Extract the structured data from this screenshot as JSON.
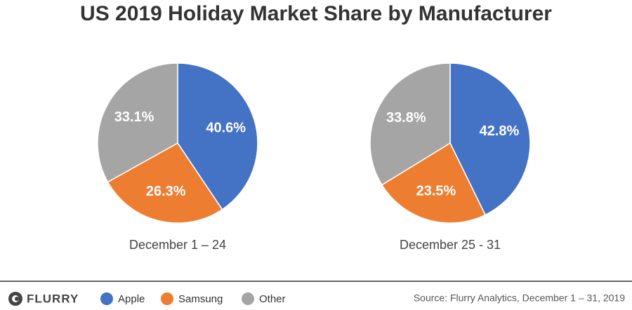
{
  "title": "US 2019 Holiday Market Share by Manufacturer",
  "chart_data": [
    {
      "type": "pie",
      "label": "December 1 – 24",
      "categories": [
        "Apple",
        "Samsung",
        "Other"
      ],
      "values": [
        40.6,
        26.3,
        33.1
      ],
      "value_labels": [
        "40.6%",
        "26.3%",
        "33.1%"
      ],
      "colors": [
        "#4472c4",
        "#ed7d31",
        "#a5a5a5"
      ]
    },
    {
      "type": "pie",
      "label": "December 25 - 31",
      "categories": [
        "Apple",
        "Samsung",
        "Other"
      ],
      "values": [
        42.8,
        23.5,
        33.8
      ],
      "value_labels": [
        "42.8%",
        "23.5%",
        "33.8%"
      ],
      "colors": [
        "#4472c4",
        "#ed7d31",
        "#a5a5a5"
      ]
    }
  ],
  "logo": "FLURRY",
  "source": "Source: Flurry Analytics, December 1 – 31, 2019"
}
